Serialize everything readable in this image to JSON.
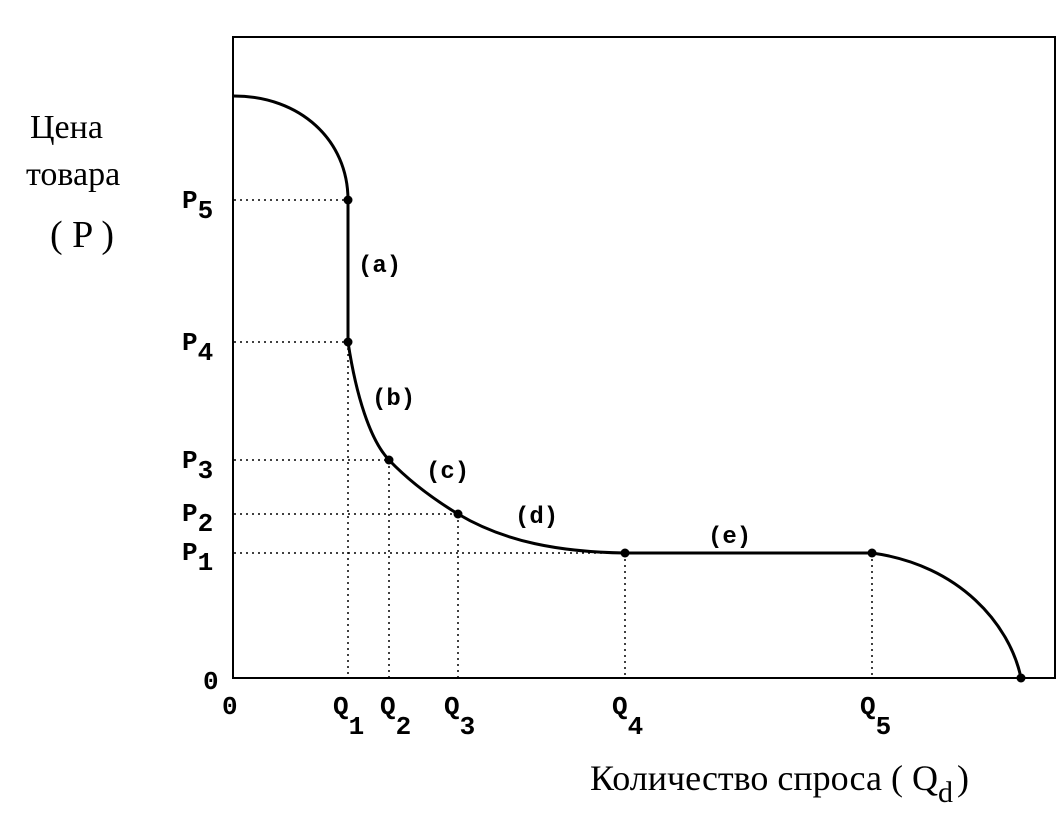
{
  "chart_data": {
    "type": "line",
    "ylabel": {
      "line1": "Цена",
      "line2": "товара",
      "line3": "( P )"
    },
    "xlabel": {
      "text": "Количество спроса ( Q",
      "sub": "d",
      "close": ")"
    },
    "origin_labels": {
      "x": "0",
      "y": "0"
    },
    "price_ticks": [
      {
        "base": "P",
        "sub": "5",
        "value": 5
      },
      {
        "base": "P",
        "sub": "4",
        "value": 4
      },
      {
        "base": "P",
        "sub": "3",
        "value": 3
      },
      {
        "base": "P",
        "sub": "2",
        "value": 2
      },
      {
        "base": "P",
        "sub": "1",
        "value": 1
      }
    ],
    "quantity_ticks": [
      {
        "base": "Q",
        "sub": "1",
        "value": 1
      },
      {
        "base": "Q",
        "sub": "2",
        "value": 2
      },
      {
        "base": "Q",
        "sub": "3",
        "value": 3
      },
      {
        "base": "Q",
        "sub": "4",
        "value": 4
      },
      {
        "base": "Q",
        "sub": "5",
        "value": 5
      }
    ],
    "segment_labels": [
      {
        "text": "(a)",
        "segment": "P5-P4 at Q1"
      },
      {
        "text": "(b)",
        "segment": "Q1-Q2"
      },
      {
        "text": "(c)",
        "segment": "Q2-Q3"
      },
      {
        "text": "(d)",
        "segment": "Q3-Q4"
      },
      {
        "text": "(e)",
        "segment": "Q4-Q5"
      }
    ],
    "points": [
      {
        "q": "Q1",
        "p": "P5"
      },
      {
        "q": "Q1",
        "p": "P4"
      },
      {
        "q": "Q2",
        "p": "P3"
      },
      {
        "q": "Q3",
        "p": "P2"
      },
      {
        "q": "Q4",
        "p": "P1"
      },
      {
        "q": "Q5",
        "p": "P1"
      },
      {
        "q": "max",
        "p": "0"
      }
    ],
    "grid": false,
    "guide_lines": "dotted"
  }
}
